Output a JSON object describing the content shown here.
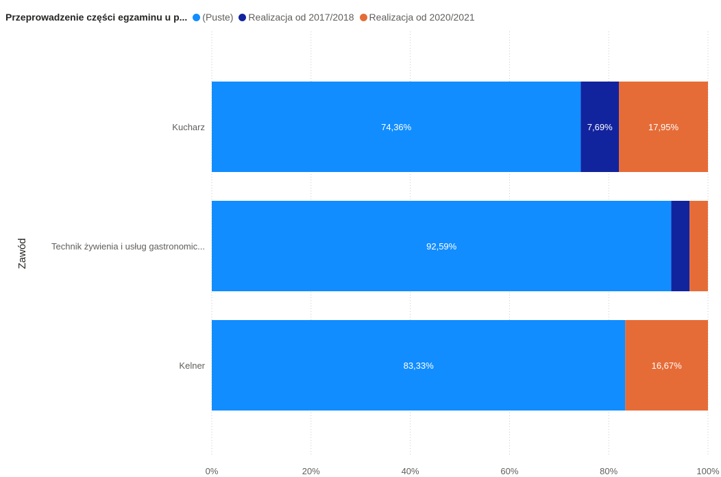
{
  "chart_data": {
    "type": "bar",
    "orientation": "horizontal",
    "stacked": "100%",
    "legend_title": "Przeprowadzenie części egzaminu u p...",
    "ylabel": "Zawód",
    "xlabel": "",
    "categories": [
      "Kucharz",
      "Technik żywienia i usług gastronomic...",
      "Kelner"
    ],
    "series": [
      {
        "name": "(Puste)",
        "color": "#118dff",
        "values": [
          74.36,
          92.59,
          83.33
        ],
        "labels": [
          "74,36%",
          "92,59%",
          "83,33%"
        ]
      },
      {
        "name": "Realizacja od 2017/2018",
        "color": "#12239e",
        "values": [
          7.69,
          3.7,
          0
        ],
        "labels": [
          "7,69%",
          "",
          ""
        ]
      },
      {
        "name": "Realizacja od 2020/2021",
        "color": "#e66c37",
        "values": [
          17.95,
          3.7,
          16.67
        ],
        "labels": [
          "17,95%",
          "",
          "16,67%"
        ]
      }
    ],
    "x_ticks": [
      0,
      20,
      40,
      60,
      80,
      100
    ],
    "x_tick_labels": [
      "0%",
      "20%",
      "40%",
      "60%",
      "80%",
      "100%"
    ],
    "xlim": [
      0,
      100
    ],
    "grid": true,
    "legend_position": "top-left"
  }
}
